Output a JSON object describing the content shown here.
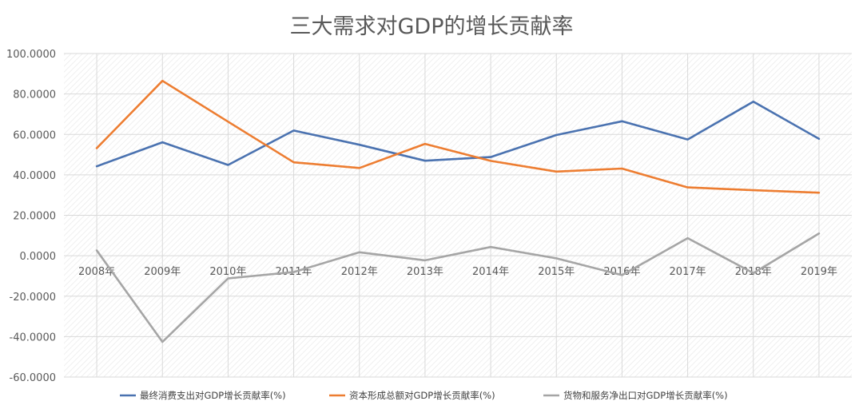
{
  "chart_data": {
    "type": "line",
    "title": "三大需求对GDP的增长贡献率",
    "xlabel": "",
    "ylabel": "",
    "categories": [
      "2008年",
      "2009年",
      "2010年",
      "2011年",
      "2012年",
      "2013年",
      "2014年",
      "2015年",
      "2016年",
      "2017年",
      "2018年",
      "2019年"
    ],
    "ylim": [
      -60,
      100
    ],
    "yticks": [
      -60,
      -40,
      -20,
      0,
      20,
      40,
      60,
      80,
      100
    ],
    "ytick_labels": [
      "-60.0000",
      "-40.0000",
      "-20.0000",
      "0.0000",
      "20.0000",
      "40.0000",
      "60.0000",
      "80.0000",
      "100.0000"
    ],
    "grid": true,
    "legend_position": "bottom",
    "series": [
      {
        "name": "最终消费支出对GDP增长贡献率(%)",
        "color": "#4A72B0",
        "values": [
          44.2,
          56.1,
          44.9,
          61.9,
          54.9,
          47.0,
          48.8,
          59.7,
          66.5,
          57.5,
          76.2,
          57.8
        ]
      },
      {
        "name": "资本形成总额对GDP增长贡献率(%)",
        "color": "#ED7D31",
        "values": [
          53.2,
          86.5,
          66.3,
          46.2,
          43.4,
          55.3,
          46.9,
          41.6,
          43.1,
          33.8,
          32.4,
          31.2
        ]
      },
      {
        "name": "货物和服务净出口对GDP增长贡献率(%)",
        "color": "#A5A5A5",
        "values": [
          2.6,
          -42.6,
          -11.2,
          -8.1,
          1.7,
          -2.3,
          4.3,
          -1.3,
          -9.6,
          8.7,
          -8.6,
          11.0
        ]
      }
    ]
  }
}
